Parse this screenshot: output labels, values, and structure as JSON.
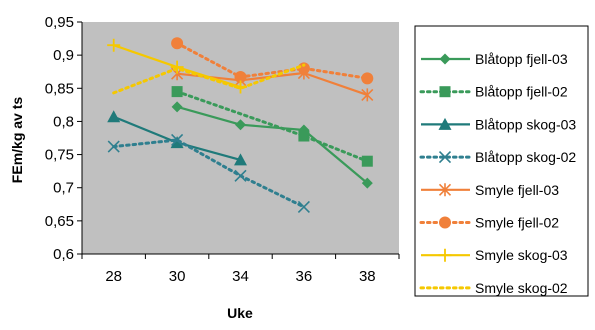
{
  "chart_data": {
    "type": "line",
    "title": "",
    "xlabel": "Uke",
    "ylabel": "FEm/kg av ts",
    "categories": [
      "28",
      "30",
      "34",
      "36",
      "38"
    ],
    "ylim": [
      0.6,
      0.95
    ],
    "yticks": [
      "0,6",
      "0,65",
      "0,7",
      "0,75",
      "0,8",
      "0,85",
      "0,9",
      "0,95"
    ],
    "grid": false,
    "plot_background": "#c0c0c0",
    "legend_position": "right",
    "series": [
      {
        "name": "Blåtopp fjell-03",
        "color": "#3a9a5a",
        "dash": "solid",
        "marker": "diamond",
        "values": [
          null,
          0.822,
          0.795,
          0.787,
          0.707
        ]
      },
      {
        "name": "Blåtopp fjell-02",
        "color": "#3a9a5a",
        "dash": "dotted",
        "marker": "square",
        "values": [
          null,
          0.845,
          null,
          0.778,
          0.74
        ]
      },
      {
        "name": "Blåtopp skog-03",
        "color": "#1f7a7a",
        "dash": "solid",
        "marker": "triangle",
        "values": [
          0.807,
          0.768,
          0.742,
          null,
          null
        ]
      },
      {
        "name": "Blåtopp skog-02",
        "color": "#2f7f8f",
        "dash": "dotted",
        "marker": "x",
        "values": [
          0.762,
          0.772,
          0.718,
          0.671,
          null
        ]
      },
      {
        "name": "Smyle fjell-03",
        "color": "#f0803a",
        "dash": "solid",
        "marker": "star",
        "values": [
          null,
          0.872,
          0.862,
          0.873,
          0.84
        ]
      },
      {
        "name": "Smyle fjell-02",
        "color": "#f0803a",
        "dash": "dotted",
        "marker": "circle",
        "values": [
          null,
          0.918,
          0.867,
          0.88,
          0.865
        ]
      },
      {
        "name": "Smyle skog-03",
        "color": "#f5c800",
        "dash": "solid",
        "marker": "plus",
        "values": [
          0.915,
          0.882,
          0.852,
          null,
          null
        ]
      },
      {
        "name": "Smyle skog-02",
        "color": "#f5c800",
        "dash": "dotted",
        "marker": "none",
        "values": [
          0.843,
          0.88,
          0.85,
          0.885,
          null
        ]
      }
    ]
  }
}
